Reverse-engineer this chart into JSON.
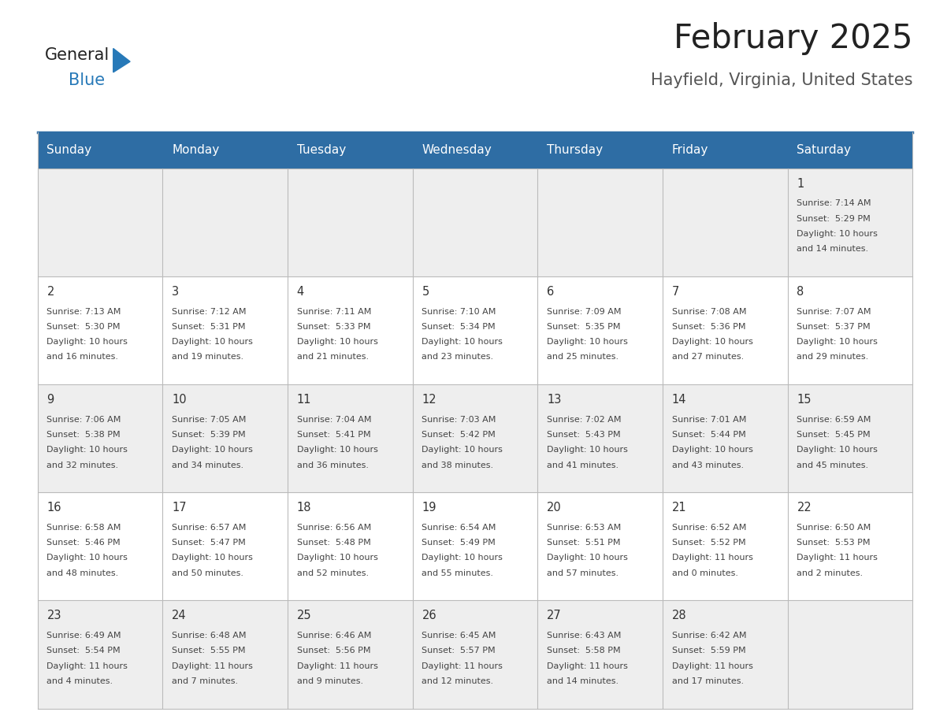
{
  "title": "February 2025",
  "subtitle": "Hayfield, Virginia, United States",
  "header_bg": "#2E6DA4",
  "header_text": "#FFFFFF",
  "day_names": [
    "Sunday",
    "Monday",
    "Tuesday",
    "Wednesday",
    "Thursday",
    "Friday",
    "Saturday"
  ],
  "row_bg_light": "#EEEEEE",
  "row_bg_white": "#FFFFFF",
  "cell_border": "#BBBBBB",
  "number_color": "#333333",
  "text_color": "#444444",
  "title_color": "#222222",
  "subtitle_color": "#555555",
  "calendar": [
    [
      null,
      null,
      null,
      null,
      null,
      null,
      {
        "day": 1,
        "sunrise": "7:14 AM",
        "sunset": "5:29 PM",
        "daylight": "10 hours and 14 minutes."
      }
    ],
    [
      {
        "day": 2,
        "sunrise": "7:13 AM",
        "sunset": "5:30 PM",
        "daylight": "10 hours and 16 minutes."
      },
      {
        "day": 3,
        "sunrise": "7:12 AM",
        "sunset": "5:31 PM",
        "daylight": "10 hours and 19 minutes."
      },
      {
        "day": 4,
        "sunrise": "7:11 AM",
        "sunset": "5:33 PM",
        "daylight": "10 hours and 21 minutes."
      },
      {
        "day": 5,
        "sunrise": "7:10 AM",
        "sunset": "5:34 PM",
        "daylight": "10 hours and 23 minutes."
      },
      {
        "day": 6,
        "sunrise": "7:09 AM",
        "sunset": "5:35 PM",
        "daylight": "10 hours and 25 minutes."
      },
      {
        "day": 7,
        "sunrise": "7:08 AM",
        "sunset": "5:36 PM",
        "daylight": "10 hours and 27 minutes."
      },
      {
        "day": 8,
        "sunrise": "7:07 AM",
        "sunset": "5:37 PM",
        "daylight": "10 hours and 29 minutes."
      }
    ],
    [
      {
        "day": 9,
        "sunrise": "7:06 AM",
        "sunset": "5:38 PM",
        "daylight": "10 hours and 32 minutes."
      },
      {
        "day": 10,
        "sunrise": "7:05 AM",
        "sunset": "5:39 PM",
        "daylight": "10 hours and 34 minutes."
      },
      {
        "day": 11,
        "sunrise": "7:04 AM",
        "sunset": "5:41 PM",
        "daylight": "10 hours and 36 minutes."
      },
      {
        "day": 12,
        "sunrise": "7:03 AM",
        "sunset": "5:42 PM",
        "daylight": "10 hours and 38 minutes."
      },
      {
        "day": 13,
        "sunrise": "7:02 AM",
        "sunset": "5:43 PM",
        "daylight": "10 hours and 41 minutes."
      },
      {
        "day": 14,
        "sunrise": "7:01 AM",
        "sunset": "5:44 PM",
        "daylight": "10 hours and 43 minutes."
      },
      {
        "day": 15,
        "sunrise": "6:59 AM",
        "sunset": "5:45 PM",
        "daylight": "10 hours and 45 minutes."
      }
    ],
    [
      {
        "day": 16,
        "sunrise": "6:58 AM",
        "sunset": "5:46 PM",
        "daylight": "10 hours and 48 minutes."
      },
      {
        "day": 17,
        "sunrise": "6:57 AM",
        "sunset": "5:47 PM",
        "daylight": "10 hours and 50 minutes."
      },
      {
        "day": 18,
        "sunrise": "6:56 AM",
        "sunset": "5:48 PM",
        "daylight": "10 hours and 52 minutes."
      },
      {
        "day": 19,
        "sunrise": "6:54 AM",
        "sunset": "5:49 PM",
        "daylight": "10 hours and 55 minutes."
      },
      {
        "day": 20,
        "sunrise": "6:53 AM",
        "sunset": "5:51 PM",
        "daylight": "10 hours and 57 minutes."
      },
      {
        "day": 21,
        "sunrise": "6:52 AM",
        "sunset": "5:52 PM",
        "daylight": "11 hours and 0 minutes."
      },
      {
        "day": 22,
        "sunrise": "6:50 AM",
        "sunset": "5:53 PM",
        "daylight": "11 hours and 2 minutes."
      }
    ],
    [
      {
        "day": 23,
        "sunrise": "6:49 AM",
        "sunset": "5:54 PM",
        "daylight": "11 hours and 4 minutes."
      },
      {
        "day": 24,
        "sunrise": "6:48 AM",
        "sunset": "5:55 PM",
        "daylight": "11 hours and 7 minutes."
      },
      {
        "day": 25,
        "sunrise": "6:46 AM",
        "sunset": "5:56 PM",
        "daylight": "11 hours and 9 minutes."
      },
      {
        "day": 26,
        "sunrise": "6:45 AM",
        "sunset": "5:57 PM",
        "daylight": "11 hours and 12 minutes."
      },
      {
        "day": 27,
        "sunrise": "6:43 AM",
        "sunset": "5:58 PM",
        "daylight": "11 hours and 14 minutes."
      },
      {
        "day": 28,
        "sunrise": "6:42 AM",
        "sunset": "5:59 PM",
        "daylight": "11 hours and 17 minutes."
      },
      null
    ]
  ],
  "logo_general_color": "#222222",
  "logo_blue_color": "#2779B8"
}
